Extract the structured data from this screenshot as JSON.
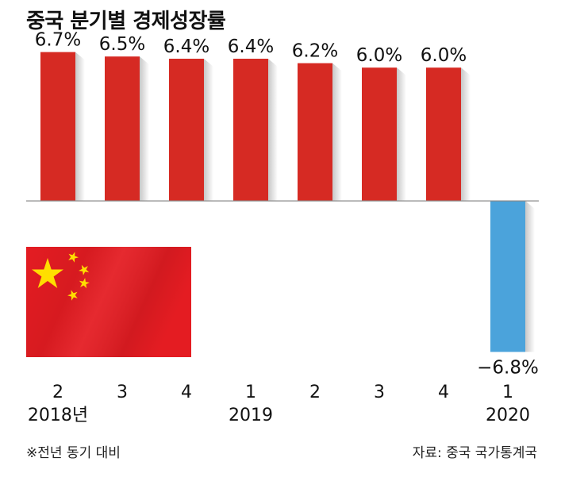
{
  "chart_data": {
    "type": "bar",
    "title": "중국 분기별 경제성장률",
    "categories": [
      "2",
      "3",
      "4",
      "1",
      "2",
      "3",
      "4",
      "1"
    ],
    "year_labels": [
      "2018년",
      "",
      "",
      "2019",
      "",
      "",
      "",
      "2020"
    ],
    "values": [
      6.7,
      6.5,
      6.4,
      6.4,
      6.2,
      6.0,
      6.0,
      -6.8
    ],
    "value_labels": [
      "6.7%",
      "6.5%",
      "6.4%",
      "6.4%",
      "6.2%",
      "6.0%",
      "6.0%",
      "−6.8%"
    ],
    "ylim": [
      -7.0,
      6.9
    ],
    "grid": false,
    "colors": {
      "positive": "#d62a23",
      "negative": "#4ba3db",
      "baseline": "#8a8a8a"
    }
  },
  "footer": {
    "note": "※전년 동기 대비",
    "source": "자료: 중국 국가통계국"
  },
  "flag": {
    "colors": {
      "field": "#e41c22",
      "star": "#ffde00"
    }
  }
}
